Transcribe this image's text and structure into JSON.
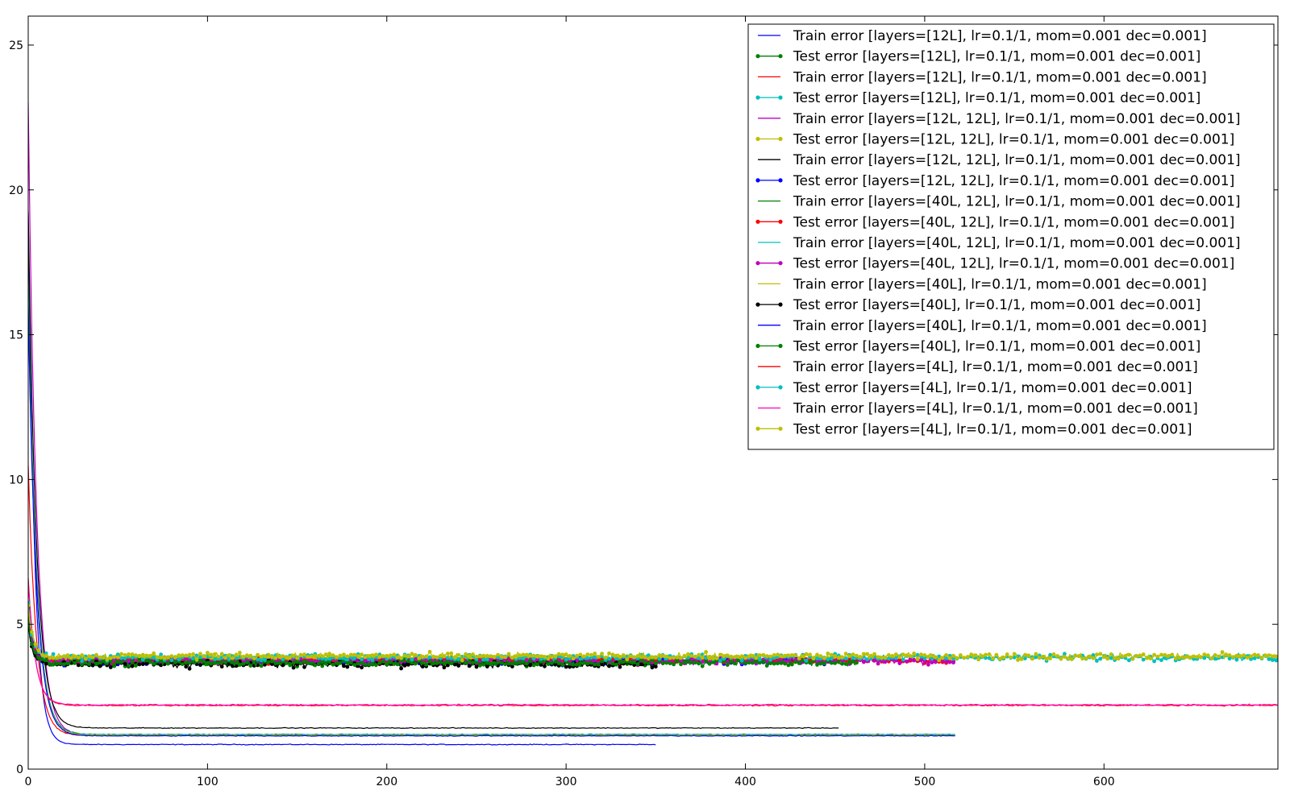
{
  "chart_data": {
    "type": "line",
    "title": "",
    "xlabel": "",
    "ylabel": "",
    "xlim": [
      0,
      697
    ],
    "ylim": [
      0,
      26
    ],
    "x_ticks": [
      0,
      100,
      200,
      300,
      400,
      500,
      600
    ],
    "y_ticks": [
      0,
      5,
      10,
      15,
      20,
      25
    ],
    "grid": false,
    "legend_position": "top-right",
    "series": [
      {
        "name": "Train error [layers=[12L], lr=0.1/1, mom=0.001 dec=0.001]",
        "kind": "train",
        "color": "#0000ff",
        "marker": false,
        "x_end": 350,
        "start": 19.2,
        "floor": 0.85,
        "tau": 3.5,
        "noise": 0.02
      },
      {
        "name": "Test error [layers=[12L], lr=0.1/1, mom=0.001 dec=0.001]",
        "kind": "test",
        "color": "#008000",
        "marker": true,
        "x_end": 350,
        "start": 5.3,
        "floor": 3.68,
        "tau": 2.5,
        "noise": 0.1
      },
      {
        "name": "Train error [layers=[12L], lr=0.1/1, mom=0.001 dec=0.001]",
        "kind": "train",
        "color": "#ff0000",
        "marker": false,
        "x_end": 350,
        "start": 10.5,
        "floor": 1.16,
        "tau": 4.5,
        "noise": 0.02
      },
      {
        "name": "Test error [layers=[12L], lr=0.1/1, mom=0.001 dec=0.001]",
        "kind": "test",
        "color": "#00bfbf",
        "marker": true,
        "x_end": 350,
        "start": 5.4,
        "floor": 3.8,
        "tau": 2.5,
        "noise": 0.1
      },
      {
        "name": "Train error [layers=[12L, 12L], lr=0.1/1, mom=0.001 dec=0.001]",
        "kind": "train",
        "color": "#bf00bf",
        "marker": false,
        "x_end": 452,
        "start": 23.0,
        "floor": 1.18,
        "tau": 4.5,
        "noise": 0.02
      },
      {
        "name": "Test error [layers=[12L, 12L], lr=0.1/1, mom=0.001 dec=0.001]",
        "kind": "test",
        "color": "#bfbf00",
        "marker": true,
        "x_end": 452,
        "start": 5.6,
        "floor": 3.82,
        "tau": 2.5,
        "noise": 0.1
      },
      {
        "name": "Train error [layers=[12L, 12L], lr=0.1/1, mom=0.001 dec=0.001]",
        "kind": "train",
        "color": "#000000",
        "marker": false,
        "x_end": 452,
        "start": 19.3,
        "floor": 1.42,
        "tau": 4.5,
        "noise": 0.02
      },
      {
        "name": "Test error [layers=[12L, 12L], lr=0.1/1, mom=0.001 dec=0.001]",
        "kind": "test",
        "color": "#0000ff",
        "marker": true,
        "x_end": 452,
        "start": 5.5,
        "floor": 3.72,
        "tau": 2.5,
        "noise": 0.1
      },
      {
        "name": "Train error [layers=[40L, 12L], lr=0.1/1, mom=0.001 dec=0.001]",
        "kind": "train",
        "color": "#008000",
        "marker": false,
        "x_end": 517,
        "start": 17.0,
        "floor": 1.2,
        "tau": 4.5,
        "noise": 0.02
      },
      {
        "name": "Test error [layers=[40L, 12L], lr=0.1/1, mom=0.001 dec=0.001]",
        "kind": "test",
        "color": "#ff0000",
        "marker": true,
        "x_end": 517,
        "start": 5.5,
        "floor": 3.75,
        "tau": 2.5,
        "noise": 0.1
      },
      {
        "name": "Train error [layers=[40L, 12L], lr=0.1/1, mom=0.001 dec=0.001]",
        "kind": "train",
        "color": "#00bfbf",
        "marker": false,
        "x_end": 517,
        "start": 16.5,
        "floor": 1.19,
        "tau": 4.5,
        "noise": 0.02
      },
      {
        "name": "Test error [layers=[40L, 12L], lr=0.1/1, mom=0.001 dec=0.001]",
        "kind": "test",
        "color": "#bf00bf",
        "marker": true,
        "x_end": 517,
        "start": 5.4,
        "floor": 3.73,
        "tau": 2.5,
        "noise": 0.1
      },
      {
        "name": "Train error [layers=[40L], lr=0.1/1, mom=0.001 dec=0.001]",
        "kind": "train",
        "color": "#bfbf00",
        "marker": false,
        "x_end": 517,
        "start": 16.0,
        "floor": 1.17,
        "tau": 4.5,
        "noise": 0.02
      },
      {
        "name": "Test error [layers=[40L], lr=0.1/1, mom=0.001 dec=0.001]",
        "kind": "test",
        "color": "#000000",
        "marker": true,
        "x_end": 350,
        "start": 5.0,
        "floor": 3.62,
        "tau": 2.5,
        "noise": 0.1
      },
      {
        "name": "Train error [layers=[40L], lr=0.1/1, mom=0.001 dec=0.001]",
        "kind": "train",
        "color": "#0000ff",
        "marker": false,
        "x_end": 517,
        "start": 16.0,
        "floor": 1.15,
        "tau": 4.5,
        "noise": 0.02
      },
      {
        "name": "Test error [layers=[40L], lr=0.1/1, mom=0.001 dec=0.001]",
        "kind": "test",
        "color": "#008000",
        "marker": true,
        "x_end": 462,
        "start": 5.2,
        "floor": 3.68,
        "tau": 2.5,
        "noise": 0.1
      },
      {
        "name": "Train error [layers=[4L], lr=0.1/1, mom=0.001 dec=0.001]",
        "kind": "train",
        "color": "#ff0000",
        "marker": false,
        "x_end": 697,
        "start": 6.6,
        "floor": 2.2,
        "tau": 4.0,
        "noise": 0.03
      },
      {
        "name": "Test error [layers=[4L], lr=0.1/1, mom=0.001 dec=0.001]",
        "kind": "test",
        "color": "#00bfbf",
        "marker": true,
        "x_end": 697,
        "start": 5.8,
        "floor": 3.86,
        "tau": 2.5,
        "noise": 0.1
      },
      {
        "name": "Train error [layers=[4L], lr=0.1/1, mom=0.001 dec=0.001]",
        "kind": "train",
        "color": "#ff00bf",
        "marker": false,
        "x_end": 697,
        "start": 6.5,
        "floor": 2.22,
        "tau": 4.0,
        "noise": 0.03
      },
      {
        "name": "Test error [layers=[4L], lr=0.1/1, mom=0.001 dec=0.001]",
        "kind": "test",
        "color": "#bfbf00",
        "marker": true,
        "x_end": 697,
        "start": 5.7,
        "floor": 3.9,
        "tau": 2.5,
        "noise": 0.1
      }
    ]
  }
}
